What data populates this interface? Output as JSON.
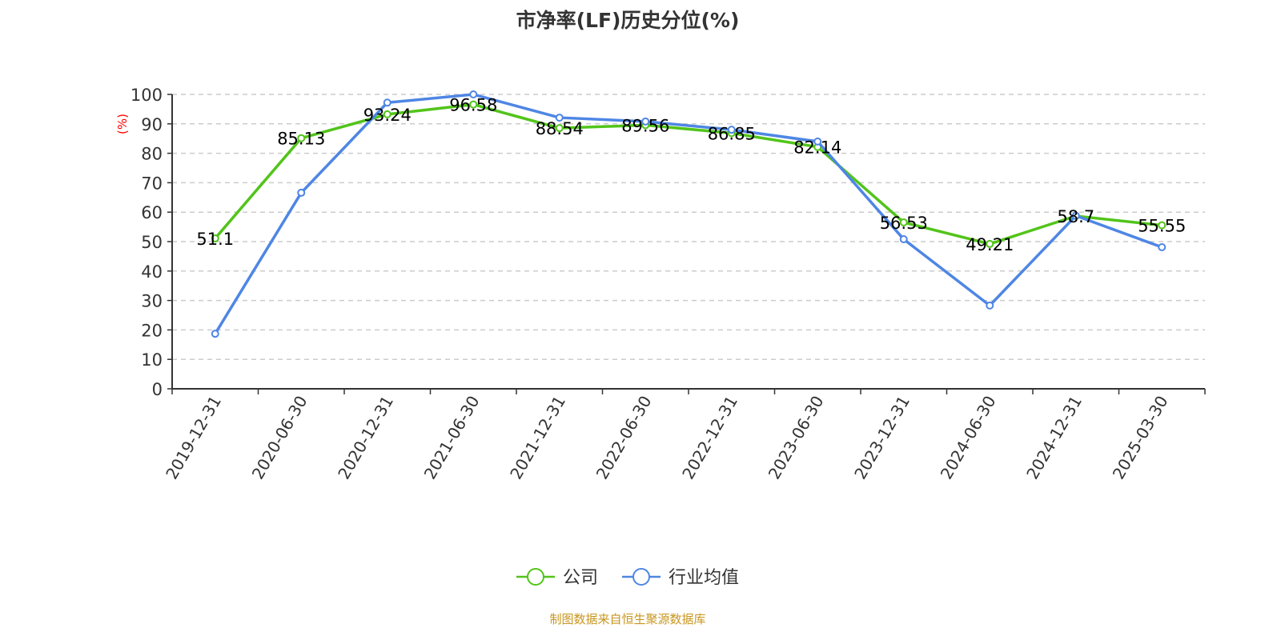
{
  "chart_data": {
    "type": "line",
    "title": "市净率(LF)历史分位(%)",
    "ylabel": "(%)",
    "xlabel": "",
    "ylim": [
      0,
      100
    ],
    "yticks": [
      0,
      10,
      20,
      30,
      40,
      50,
      60,
      70,
      80,
      90,
      100
    ],
    "grid": true,
    "legend_position": "bottom",
    "categories": [
      "2019-12-31",
      "2020-06-30",
      "2020-12-31",
      "2021-06-30",
      "2021-12-31",
      "2022-06-30",
      "2022-12-31",
      "2023-06-30",
      "2023-12-31",
      "2024-06-30",
      "2024-12-31",
      "2025-03-30"
    ],
    "series": [
      {
        "name": "公司",
        "color": "#52c41a",
        "labels": true,
        "values": [
          51.1,
          85.13,
          93.24,
          96.58,
          88.54,
          89.56,
          86.85,
          82.14,
          56.53,
          49.21,
          58.7,
          55.55
        ]
      },
      {
        "name": "行业均值",
        "color": "#4e86e4",
        "labels": false,
        "values": [
          18.7,
          66.6,
          97.2,
          100,
          92.1,
          90.8,
          88.0,
          84.0,
          50.8,
          28.3,
          58.8,
          48.1
        ]
      }
    ]
  },
  "source": "制图数据来自恒生聚源数据库"
}
